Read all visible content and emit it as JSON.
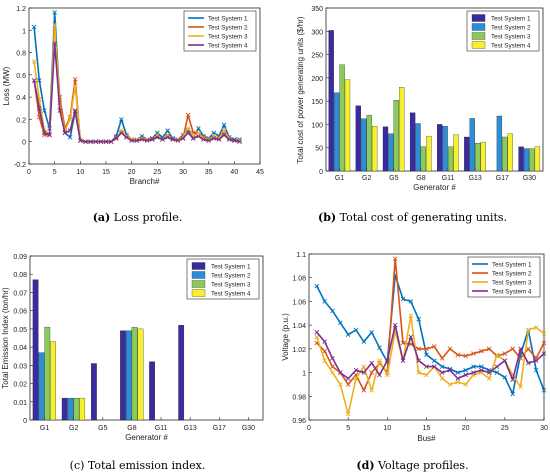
{
  "chart_data": [
    {
      "type": "line",
      "xlabel": "Branch#",
      "ylabel": "Loss (MW)",
      "xlim": [
        0,
        45
      ],
      "ylim": [
        -0.2,
        1.2
      ],
      "xticks": [
        0,
        5,
        10,
        15,
        20,
        25,
        30,
        35,
        40,
        45
      ],
      "yticks": [
        -0.2,
        0,
        0.2,
        0.4,
        0.6,
        0.8,
        1,
        1.2
      ],
      "legend_position": "top-right",
      "caption_label": "(a)",
      "caption_text": "Loss profile.",
      "x": [
        1,
        2,
        3,
        4,
        5,
        6,
        7,
        8,
        9,
        10,
        11,
        12,
        13,
        14,
        15,
        16,
        17,
        18,
        19,
        20,
        21,
        22,
        23,
        24,
        25,
        26,
        27,
        28,
        29,
        30,
        31,
        32,
        33,
        34,
        35,
        36,
        37,
        38,
        39,
        40,
        41
      ],
      "series": [
        {
          "name": "Test System 1",
          "color": "#0072BD",
          "values": [
            1.03,
            0.55,
            0.28,
            0.12,
            1.16,
            0.35,
            0.08,
            0.04,
            0.27,
            0.01,
            0,
            0,
            0,
            0,
            0,
            0,
            0.05,
            0.2,
            0.06,
            0.02,
            0.01,
            0.05,
            0.02,
            0.03,
            0.08,
            0.04,
            0.1,
            0.03,
            0.02,
            0.06,
            0.1,
            0.03,
            0.12,
            0.05,
            0.03,
            0.08,
            0.05,
            0.15,
            0.04,
            0.02,
            0.02
          ]
        },
        {
          "name": "Test System 2",
          "color": "#D95319",
          "values": [
            0.55,
            0.22,
            0.06,
            0.06,
            0.98,
            0.4,
            0.12,
            0.22,
            0.56,
            0.01,
            0,
            0,
            0,
            0,
            0,
            0,
            0.04,
            0.08,
            0.04,
            0.02,
            0.02,
            0.03,
            0.02,
            0.02,
            0.05,
            0.02,
            0.05,
            0.02,
            0.02,
            0.03,
            0.24,
            0.08,
            0.08,
            0.04,
            0.02,
            0.05,
            0.03,
            0.08,
            0.02,
            0.01,
            0.01
          ]
        },
        {
          "name": "Test System 3",
          "color": "#EDB120",
          "values": [
            0.72,
            0.38,
            0.1,
            0.07,
            1.05,
            0.32,
            0.1,
            0.2,
            0.5,
            0.01,
            0,
            0,
            0,
            0,
            0,
            0,
            0.03,
            0.1,
            0.05,
            0.02,
            0.02,
            0.03,
            0.02,
            0.02,
            0.06,
            0.02,
            0.06,
            0.02,
            0.02,
            0.04,
            0.12,
            0.05,
            0.08,
            0.03,
            0.02,
            0.05,
            0.03,
            0.1,
            0.03,
            0.01,
            0.01
          ]
        },
        {
          "name": "Test System 4",
          "color": "#7E2F8E",
          "values": [
            0.55,
            0.3,
            0.08,
            0.06,
            0.88,
            0.28,
            0.08,
            0.1,
            0.28,
            0.01,
            0,
            0,
            0,
            0,
            0,
            0,
            0.03,
            0.08,
            0.04,
            0.01,
            0.01,
            0.02,
            0.01,
            0.02,
            0.04,
            0.02,
            0.04,
            0.02,
            0.01,
            0.03,
            0.08,
            0.03,
            0.05,
            0.02,
            0.01,
            0.03,
            0.02,
            0.06,
            0.02,
            0.01,
            0
          ]
        }
      ]
    },
    {
      "type": "bar",
      "xlabel": "Generator #",
      "ylabel": "Total cost of power generating units ($/hr)",
      "ylim": [
        0,
        350
      ],
      "yticks": [
        0,
        50,
        100,
        150,
        200,
        250,
        300,
        350
      ],
      "legend_position": "top-right",
      "caption_label": "(b)",
      "caption_text": "Total cost of generating units.",
      "categories": [
        "G1",
        "G2",
        "G5",
        "G8",
        "G11",
        "G13",
        "G17",
        "G30"
      ],
      "series": [
        {
          "name": "Test System 1",
          "color": "#3A2C9E",
          "values": [
            302,
            140,
            95,
            125,
            100,
            73,
            0,
            52
          ]
        },
        {
          "name": "Test System 2",
          "color": "#2C8FD6",
          "values": [
            168,
            112,
            80,
            102,
            96,
            113,
            118,
            48
          ]
        },
        {
          "name": "Test System 3",
          "color": "#8ACB5C",
          "values": [
            228,
            120,
            152,
            52,
            52,
            60,
            73,
            48
          ]
        },
        {
          "name": "Test System 4",
          "color": "#F7F02E",
          "values": [
            196,
            96,
            180,
            75,
            78,
            62,
            80,
            52
          ]
        }
      ]
    },
    {
      "type": "bar",
      "xlabel": "Generator #",
      "ylabel": "Total Emission Index (ton/hr)",
      "ylim": [
        0,
        0.09
      ],
      "yticks": [
        0,
        0.01,
        0.02,
        0.03,
        0.04,
        0.05,
        0.06,
        0.07,
        0.08,
        0.09
      ],
      "legend_position": "top-right",
      "caption_label": "(c)",
      "caption_text": "Total emission index.",
      "categories": [
        "G1",
        "G2",
        "G5",
        "G8",
        "G11",
        "G13",
        "G17",
        "G30"
      ],
      "series": [
        {
          "name": "Test System 1",
          "color": "#3A2C9E",
          "values": [
            0.077,
            0.012,
            0.031,
            0.049,
            0.032,
            0.052,
            0,
            0
          ]
        },
        {
          "name": "Test System 2",
          "color": "#2C8FD6",
          "values": [
            0.037,
            0.012,
            0,
            0.049,
            0,
            0,
            0,
            0
          ]
        },
        {
          "name": "Test System 3",
          "color": "#8ACB5C",
          "values": [
            0.051,
            0.012,
            0,
            0.051,
            0,
            0,
            0,
            0
          ]
        },
        {
          "name": "Test System 4",
          "color": "#F7F02E",
          "values": [
            0.043,
            0.012,
            0,
            0.05,
            0,
            0,
            0,
            0
          ]
        }
      ]
    },
    {
      "type": "line",
      "xlabel": "Bus#",
      "ylabel": "Voltage (p.u.)",
      "xlim": [
        0,
        30
      ],
      "ylim": [
        0.96,
        1.1
      ],
      "xticks": [
        0,
        5,
        10,
        15,
        20,
        25,
        30
      ],
      "yticks": [
        0.96,
        0.98,
        1,
        1.02,
        1.04,
        1.06,
        1.08,
        1.1
      ],
      "legend_position": "top-right",
      "caption_label": "(d)",
      "caption_text": "Voltage profiles.",
      "x": [
        1,
        2,
        3,
        4,
        5,
        6,
        7,
        8,
        9,
        10,
        11,
        12,
        13,
        14,
        15,
        16,
        17,
        18,
        19,
        20,
        21,
        22,
        23,
        24,
        25,
        26,
        27,
        28,
        29,
        30
      ],
      "series": [
        {
          "name": "Test System 1",
          "color": "#0072BD",
          "values": [
            1.073,
            1.06,
            1.052,
            1.042,
            1.032,
            1.036,
            1.026,
            1.034,
            1.021,
            1.009,
            1.082,
            1.062,
            1.06,
            1.045,
            1.015,
            1.01,
            1.005,
            1.003,
            1.0,
            1.002,
            1.005,
            1.005,
            1.002,
            1.0,
            0.996,
            0.982,
            1.015,
            1.036,
            1.002,
            0.985
          ]
        },
        {
          "name": "Test System 2",
          "color": "#D95319",
          "values": [
            1.025,
            1.018,
            1.005,
            1.0,
            0.99,
            0.998,
            0.985,
            1.0,
            1.008,
            1.0,
            1.096,
            1.025,
            1.024,
            1.02,
            1.02,
            1.022,
            1.012,
            1.02,
            1.015,
            1.014,
            1.016,
            1.018,
            1.02,
            1.014,
            1.016,
            1.02,
            1.012,
            1.02,
            1.012,
            1.025
          ]
        },
        {
          "name": "Test System 3",
          "color": "#EDB120",
          "values": [
            1.03,
            1.01,
            1.0,
            0.99,
            0.965,
            0.995,
            1.005,
            0.985,
            1.01,
            0.998,
            1.035,
            1.01,
            1.048,
            1.0,
            0.998,
            1.005,
            0.995,
            0.99,
            0.992,
            0.99,
            0.998,
            1.0,
            0.995,
            1.015,
            1.01,
            0.998,
            0.988,
            1.036,
            1.038,
            1.033
          ]
        },
        {
          "name": "Test System 4",
          "color": "#7E2F8E",
          "values": [
            1.034,
            1.026,
            1.012,
            1.0,
            0.995,
            1.002,
            1.0,
            1.008,
            0.998,
            1.01,
            1.04,
            1.01,
            1.03,
            1.01,
            1.005,
            1.005,
            1.0,
            1.002,
            0.995,
            0.998,
            1.0,
            1.002,
            1.0,
            1.005,
            1.01,
            0.994,
            1.02,
            1.008,
            1.01,
            1.016
          ]
        }
      ]
    }
  ]
}
